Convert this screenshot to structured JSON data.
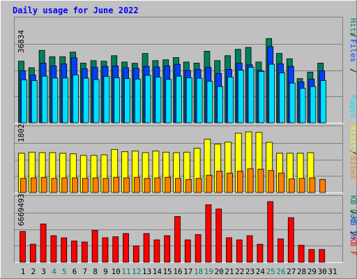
{
  "title": "Daily usage for June 2022",
  "colors": {
    "background": "#c0c0c0",
    "hits": "#00805c",
    "files": "#0040ff",
    "pages": "#00e0ff",
    "visits": "#ffff00",
    "sites": "#ff8000",
    "kbytes": "#ff0000",
    "title": "#0000ff",
    "day_normal": "#000000",
    "day_weekend": "#00805c"
  },
  "days": [
    "1",
    "2",
    "3",
    "4",
    "5",
    "6",
    "7",
    "8",
    "9",
    "10",
    "11",
    "12",
    "13",
    "14",
    "15",
    "16",
    "17",
    "18",
    "19",
    "20",
    "21",
    "22",
    "23",
    "24",
    "25",
    "26",
    "27",
    "28",
    "29",
    "30",
    "31"
  ],
  "weekend_days": [
    4,
    5,
    11,
    12,
    18,
    19,
    25,
    26
  ],
  "chart_data": [
    {
      "type": "bar",
      "panel": "hits-files-pages",
      "ytick_label": "36834",
      "ylim": [
        0,
        51500
      ],
      "legend": [
        "Pages",
        "Files",
        "Hits"
      ],
      "series": [
        {
          "name": "Hits",
          "values": [
            30100,
            26900,
            35400,
            32300,
            32300,
            34600,
            29200,
            30400,
            30100,
            32800,
            29700,
            29100,
            33900,
            30400,
            30800,
            31900,
            29700,
            29200,
            35000,
            30400,
            32800,
            35900,
            36834,
            29700,
            41200,
            33900,
            31300,
            21600,
            24800,
            29200,
            null
          ]
        },
        {
          "name": "Files",
          "values": [
            25400,
            23300,
            29200,
            27800,
            28800,
            31800,
            26400,
            27100,
            27600,
            27800,
            26900,
            26600,
            27600,
            27300,
            27800,
            28600,
            25600,
            26100,
            27100,
            24100,
            26100,
            29200,
            28300,
            25600,
            37200,
            28800,
            27600,
            19900,
            21300,
            25400,
            null
          ]
        },
        {
          "name": "Pages",
          "values": [
            21000,
            20600,
            22800,
            21900,
            21900,
            23400,
            21800,
            21100,
            22600,
            22000,
            21600,
            21400,
            23200,
            22300,
            21200,
            22800,
            22000,
            21800,
            20300,
            17700,
            22300,
            25700,
            27100,
            25100,
            28600,
            24400,
            19400,
            16800,
            17700,
            20600,
            null
          ]
        }
      ]
    },
    {
      "type": "bar",
      "panel": "visits-sites",
      "ytick_label": "1802",
      "ylim": [
        0,
        2013
      ],
      "legend": [
        "Sites",
        "Visits"
      ],
      "series": [
        {
          "name": "Visits",
          "values": [
            1190,
            1225,
            1209,
            1209,
            1193,
            1177,
            1128,
            1128,
            1144,
            1307,
            1242,
            1258,
            1209,
            1258,
            1225,
            1209,
            1225,
            1346,
            1619,
            1469,
            1530,
            1802,
            1841,
            1825,
            1524,
            1193,
            1193,
            1193,
            1209,
            null,
            null
          ]
        },
        {
          "name": "Sites",
          "values": [
            429,
            446,
            462,
            429,
            446,
            446,
            429,
            446,
            429,
            462,
            446,
            462,
            429,
            446,
            462,
            429,
            397,
            429,
            526,
            650,
            590,
            650,
            722,
            712,
            666,
            592,
            413,
            429,
            446,
            397,
            null
          ]
        }
      ]
    },
    {
      "type": "bar",
      "panel": "kbytes",
      "ytick_label": "6669493",
      "ylim": [
        0,
        7880000
      ],
      "legend": [
        "KB F",
        "KB In",
        "KB Out"
      ],
      "series": [
        {
          "name": "KB F",
          "values": [
            3670000,
            2150000,
            4550000,
            3160000,
            2900000,
            2530000,
            2410000,
            3800000,
            2920000,
            3040000,
            3420000,
            1940000,
            3420000,
            2660000,
            3160000,
            5440000,
            2660000,
            3290000,
            6840000,
            6330000,
            2920000,
            2660000,
            3160000,
            2150000,
            7220000,
            2780000,
            5310000,
            2020000,
            1520000,
            1520000,
            null
          ]
        }
      ]
    }
  ]
}
